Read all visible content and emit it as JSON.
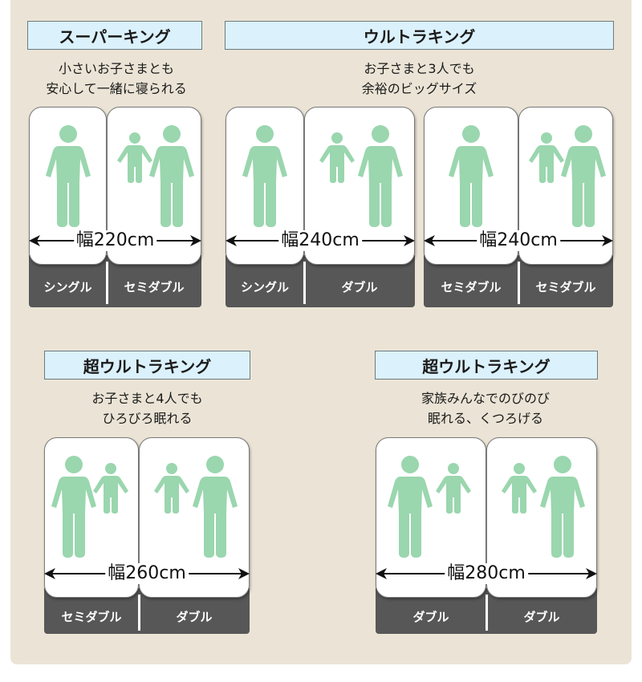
{
  "colors": {
    "background": "#ebe4d6",
    "title_bg": "#dbf1fb",
    "figure": "#9ad6ae",
    "base": "#575757"
  },
  "groups": [
    {
      "title": "スーパーキング",
      "caption": [
        "小さいお子さまとも",
        "安心して一緒に寝られる"
      ],
      "sets": [
        {
          "width_label": "幅220cm",
          "beds": [
            {
              "label": "シングル",
              "occupants": [
                "adult"
              ]
            },
            {
              "label": "セミダブル",
              "occupants": [
                "child",
                "adult"
              ]
            }
          ]
        }
      ]
    },
    {
      "title": "ウルトラキング",
      "caption": [
        "お子さまと3人でも",
        "余裕のビッグサイズ"
      ],
      "sets": [
        {
          "width_label": "幅240cm",
          "beds": [
            {
              "label": "シングル",
              "occupants": [
                "adult"
              ]
            },
            {
              "label": "ダブル",
              "occupants": [
                "child",
                "adult"
              ]
            }
          ]
        },
        {
          "width_label": "幅240cm",
          "beds": [
            {
              "label": "セミダブル",
              "occupants": [
                "adult"
              ]
            },
            {
              "label": "セミダブル",
              "occupants": [
                "child",
                "adult"
              ]
            }
          ]
        }
      ]
    },
    {
      "title": "超ウルトラキング",
      "caption": [
        "お子さまと4人でも",
        "ひろびろ眠れる"
      ],
      "sets": [
        {
          "width_label": "幅260cm",
          "beds": [
            {
              "label": "セミダブル",
              "occupants": [
                "adult",
                "child"
              ]
            },
            {
              "label": "ダブル",
              "occupants": [
                "child",
                "adult"
              ]
            }
          ]
        }
      ]
    },
    {
      "title": "超ウルトラキング",
      "caption": [
        "家族みんなでのびのび",
        "眠れる、くつろげる"
      ],
      "sets": [
        {
          "width_label": "幅280cm",
          "beds": [
            {
              "label": "ダブル",
              "occupants": [
                "adult",
                "child"
              ]
            },
            {
              "label": "ダブル",
              "occupants": [
                "child",
                "adult"
              ]
            }
          ]
        }
      ]
    }
  ]
}
